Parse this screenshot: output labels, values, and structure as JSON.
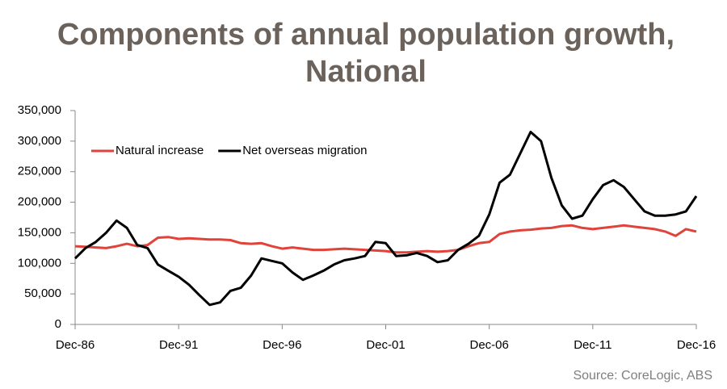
{
  "chart_data": {
    "type": "line",
    "title": "Components of annual population growth, National",
    "source": "Source: CoreLogic, ABS",
    "categories": [
      "Dec-86",
      null,
      null,
      null,
      null,
      null,
      null,
      null,
      null,
      null,
      "Dec-91",
      null,
      null,
      null,
      null,
      null,
      null,
      null,
      null,
      null,
      "Dec-96",
      null,
      null,
      null,
      null,
      null,
      null,
      null,
      null,
      null,
      "Dec-01",
      null,
      null,
      null,
      null,
      null,
      null,
      null,
      null,
      null,
      "Dec-06",
      null,
      null,
      null,
      null,
      null,
      null,
      null,
      null,
      null,
      "Dec-11",
      null,
      null,
      null,
      null,
      null,
      null,
      null,
      null,
      null,
      "Dec-16"
    ],
    "series": [
      {
        "name": "Natural increase",
        "color": "#e0433a",
        "values": [
          128000,
          127000,
          126000,
          125000,
          128000,
          132000,
          128000,
          130000,
          142000,
          143000,
          140000,
          141000,
          140000,
          139000,
          139000,
          138000,
          133000,
          132000,
          133000,
          128000,
          124000,
          126000,
          124000,
          122000,
          122000,
          123000,
          124000,
          123000,
          122000,
          121000,
          120000,
          118000,
          118000,
          119000,
          120000,
          119000,
          120000,
          122000,
          128000,
          133000,
          135000,
          148000,
          152000,
          154000,
          155000,
          157000,
          158000,
          161000,
          162000,
          158000,
          156000,
          158000,
          160000,
          162000,
          160000,
          158000,
          156000,
          152000,
          145000,
          156000,
          152000
        ]
      },
      {
        "name": "Net overseas migration",
        "color": "#000000",
        "values": [
          108000,
          125000,
          135000,
          150000,
          170000,
          158000,
          130000,
          125000,
          98000,
          88000,
          78000,
          65000,
          48000,
          32000,
          36000,
          55000,
          60000,
          80000,
          108000,
          104000,
          100000,
          85000,
          73000,
          80000,
          88000,
          98000,
          105000,
          108000,
          112000,
          135000,
          133000,
          112000,
          113000,
          117000,
          112000,
          102000,
          105000,
          122000,
          132000,
          145000,
          180000,
          232000,
          245000,
          280000,
          315000,
          300000,
          240000,
          195000,
          173000,
          178000,
          205000,
          228000,
          236000,
          225000,
          205000,
          185000,
          178000,
          178000,
          180000,
          185000,
          210000
        ]
      }
    ],
    "ylim": [
      0,
      350000
    ],
    "yticks": [
      0,
      {
        "value": 50000,
        "label": "50,000"
      },
      {
        "value": 100000,
        "label": "100,000"
      },
      {
        "value": 150000,
        "label": "150,000"
      },
      {
        "value": 200000,
        "label": "200,000"
      },
      {
        "value": 250000,
        "label": "250,000"
      },
      {
        "value": 300000,
        "label": "300,000"
      },
      {
        "value": 350000,
        "label": "350,000"
      }
    ],
    "legend": "top-left",
    "grid": false
  }
}
